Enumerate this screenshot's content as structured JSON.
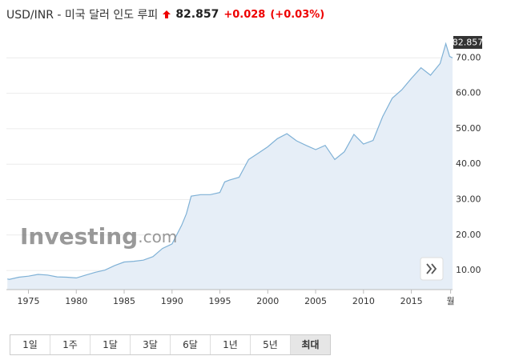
{
  "chart_data": {
    "type": "area",
    "title": "USD/INR - 미국 달러 인도 루피",
    "price": "82.857",
    "change": "+0.028",
    "change_pct": "(+0.03%)",
    "watermark": [
      "Investing",
      ".com"
    ],
    "x": [
      1972.8,
      1973,
      1974,
      1975,
      1976,
      1977,
      1978,
      1979,
      1980,
      1981,
      1982,
      1983,
      1984,
      1985,
      1986,
      1987,
      1988,
      1989,
      1990,
      1991,
      1991.5,
      1992,
      1993,
      1994,
      1995,
      1995.5,
      1996,
      1997,
      1998,
      1999,
      2000,
      2001,
      2002,
      2003,
      2004,
      2005,
      2006,
      2007,
      2008,
      2009,
      2010,
      2011,
      2012,
      2013,
      2014,
      2015,
      2016,
      2017,
      2018,
      2018.6,
      2019,
      2019.3
    ],
    "series": [
      {
        "name": "USD/INR",
        "color": "#7fb1d6",
        "fill": "#e6eef7",
        "values": [
          7.6,
          7.5,
          8.1,
          8.4,
          8.9,
          8.7,
          8.2,
          8.1,
          7.9,
          8.7,
          9.5,
          10.1,
          11.4,
          12.4,
          12.6,
          12.9,
          13.9,
          16.2,
          17.5,
          22.7,
          26,
          31,
          31.4,
          31.4,
          32,
          35,
          35.5,
          36.3,
          41.3,
          43.1,
          44.9,
          47.2,
          48.6,
          46.6,
          45.3,
          44.1,
          45.3,
          41.3,
          43.5,
          48.4,
          45.7,
          46.7,
          53.4,
          58.6,
          61.0,
          64.2,
          67.2,
          65.1,
          68.4,
          74,
          70.4,
          70
        ]
      }
    ],
    "xlim": [
      1972.7,
      2019.3
    ],
    "ylim": [
      4.6,
      77.3
    ],
    "xticks": [
      1975,
      1980,
      1985,
      1990,
      1995,
      2000,
      2005,
      2010,
      2015,
      {
        "value": 2019.1,
        "label": "월"
      }
    ],
    "yticks": [
      {
        "value": 10,
        "label": "10.00"
      },
      {
        "value": 20,
        "label": "20.00"
      },
      {
        "value": 30,
        "label": "30.00"
      },
      {
        "value": 40,
        "label": "40.00"
      },
      {
        "value": 50,
        "label": "50.00"
      },
      {
        "value": 60,
        "label": "60.00"
      },
      {
        "value": 70,
        "label": "70.00"
      }
    ],
    "grid": true
  },
  "range_buttons": [
    {
      "label": "1일",
      "active": false
    },
    {
      "label": "1주",
      "active": false
    },
    {
      "label": "1달",
      "active": false
    },
    {
      "label": "3달",
      "active": false
    },
    {
      "label": "6달",
      "active": false
    },
    {
      "label": "1년",
      "active": false
    },
    {
      "label": "5년",
      "active": false
    },
    {
      "label": "최대",
      "active": true
    }
  ]
}
